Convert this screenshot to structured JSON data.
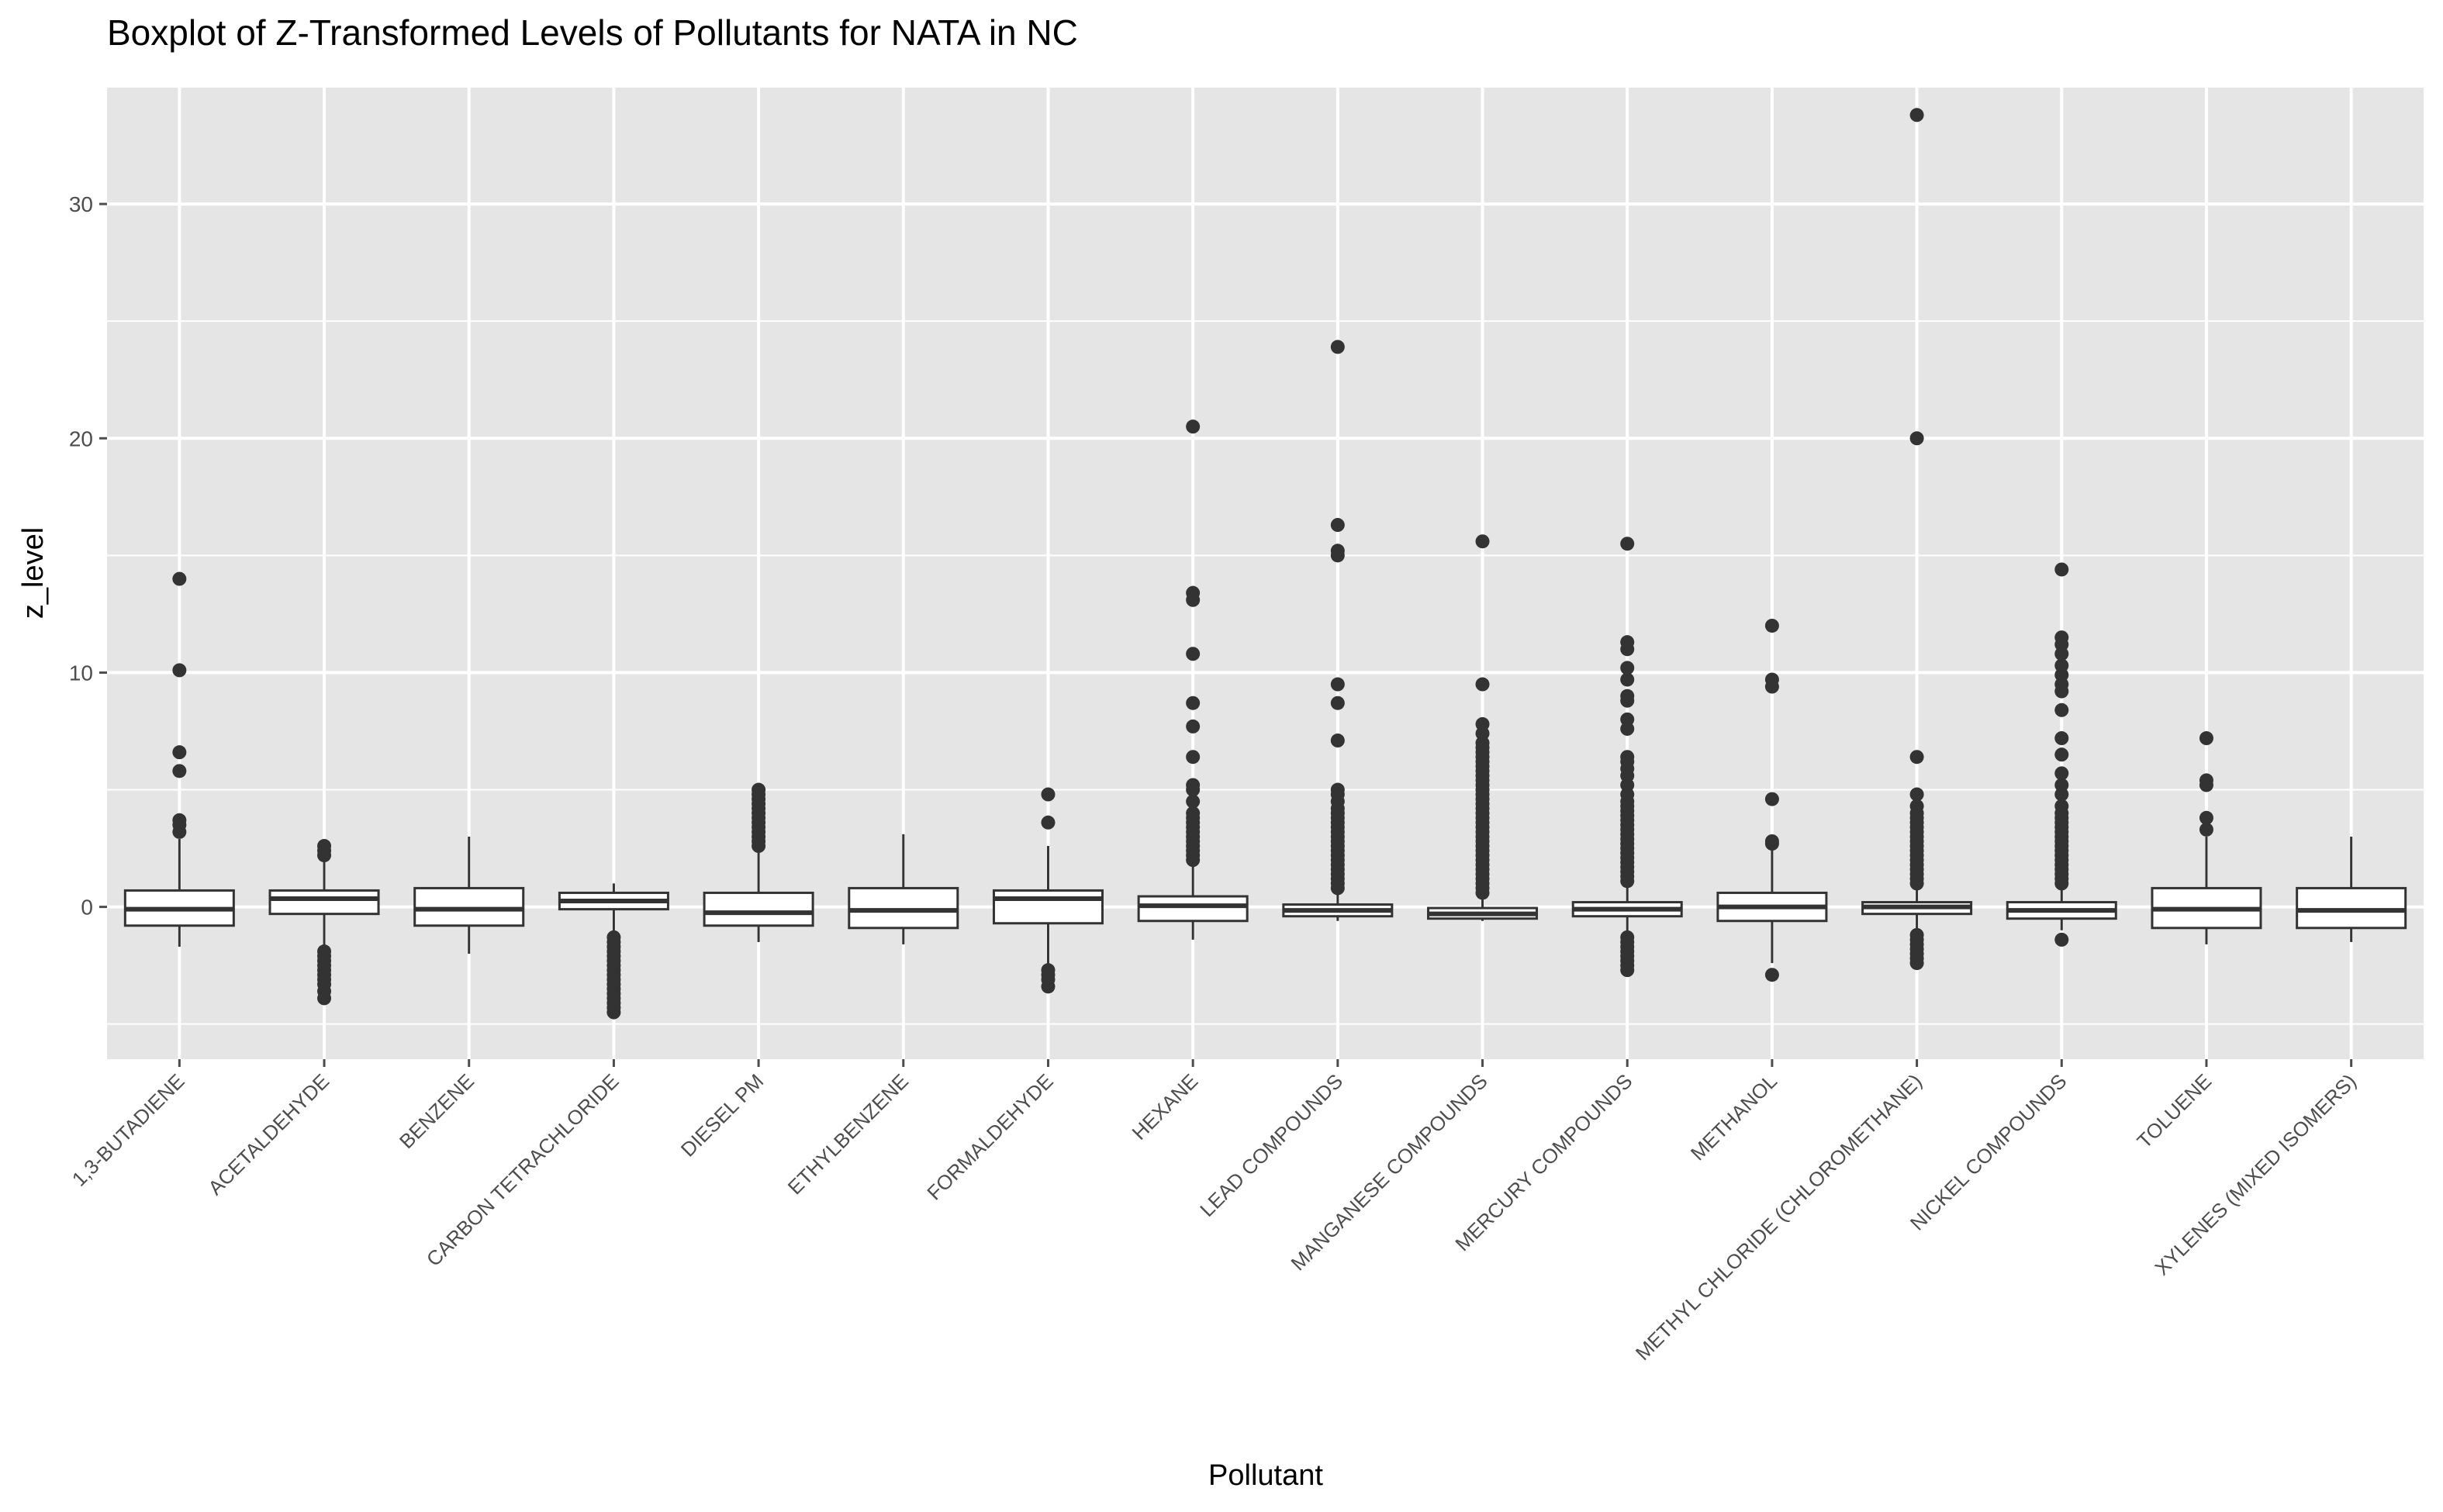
{
  "chart_data": {
    "type": "boxplot",
    "title": "Boxplot of Z-Transformed Levels of Pollutants for NATA in NC",
    "xlabel": "Pollutant",
    "ylabel": "z_level",
    "ylim": [
      -6.5,
      35
    ],
    "yticks": [
      0,
      10,
      20,
      30
    ],
    "grid": true,
    "legend": "none",
    "colors": {
      "panel": "#e5e5e5",
      "grid": "#ffffff",
      "box_fill": "#ffffff",
      "box_line": "#333333",
      "point": "#333333",
      "tick": "#4d4d4d"
    },
    "categories": [
      "1,3-BUTADIENE",
      "ACETALDEHYDE",
      "BENZENE",
      "CARBON TETRACHLORIDE",
      "DIESEL PM",
      "ETHYLBENZENE",
      "FORMALDEHYDE",
      "HEXANE",
      "LEAD COMPOUNDS",
      "MANGANESE COMPOUNDS",
      "MERCURY COMPOUNDS",
      "METHANOL",
      "METHYL CHLORIDE (CHLOROMETHANE)",
      "NICKEL COMPOUNDS",
      "TOLUENE",
      "XYLENES (MIXED ISOMERS)"
    ],
    "boxes": [
      {
        "whisker_low": -1.7,
        "q1": -0.8,
        "median": -0.1,
        "q3": 0.7,
        "whisker_high": 2.9,
        "outliers": [
          3.2,
          3.5,
          3.7,
          5.8,
          6.6,
          10.1,
          14.0
        ]
      },
      {
        "whisker_low": -1.8,
        "q1": -0.3,
        "median": 0.35,
        "q3": 0.7,
        "whisker_high": 2.1,
        "outliers": [
          2.2,
          2.4,
          2.6,
          -1.9,
          -2.1,
          -2.3,
          -2.5,
          -2.7,
          -2.9,
          -3.1,
          -3.3,
          -3.6,
          -3.9
        ]
      },
      {
        "whisker_low": -2.0,
        "q1": -0.8,
        "median": -0.1,
        "q3": 0.8,
        "whisker_high": 3.0,
        "outliers": []
      },
      {
        "whisker_low": -1.1,
        "q1": -0.1,
        "median": 0.25,
        "q3": 0.6,
        "whisker_high": 1.0,
        "outliers": [
          -1.3,
          -1.5,
          -1.7,
          -1.9,
          -2.1,
          -2.3,
          -2.5,
          -2.7,
          -2.9,
          -3.1,
          -3.3,
          -3.5,
          -3.7,
          -3.9,
          -4.1,
          -4.3,
          -4.5
        ]
      },
      {
        "whisker_low": -1.5,
        "q1": -0.8,
        "median": -0.25,
        "q3": 0.6,
        "whisker_high": 2.4,
        "outliers": [
          2.6,
          2.8,
          3.0,
          3.2,
          3.4,
          3.6,
          3.8,
          4.0,
          4.2,
          4.4,
          4.6,
          4.8,
          5.0
        ]
      },
      {
        "whisker_low": -1.6,
        "q1": -0.9,
        "median": -0.15,
        "q3": 0.8,
        "whisker_high": 3.1,
        "outliers": []
      },
      {
        "whisker_low": -2.5,
        "q1": -0.7,
        "median": 0.35,
        "q3": 0.7,
        "whisker_high": 2.6,
        "outliers": [
          3.6,
          4.8,
          -2.7,
          -2.9,
          -3.1,
          -3.4
        ]
      },
      {
        "whisker_low": -1.4,
        "q1": -0.6,
        "median": 0.05,
        "q3": 0.45,
        "whisker_high": 1.8,
        "outliers": [
          2.0,
          2.2,
          2.4,
          2.6,
          2.8,
          3.0,
          3.2,
          3.4,
          3.6,
          3.8,
          4.0,
          4.5,
          5.0,
          5.2,
          6.4,
          7.7,
          8.7,
          10.8,
          13.1,
          13.4,
          20.5
        ]
      },
      {
        "whisker_low": -0.6,
        "q1": -0.4,
        "median": -0.15,
        "q3": 0.1,
        "whisker_high": 0.6,
        "outliers": [
          0.8,
          1.0,
          1.2,
          1.4,
          1.6,
          1.8,
          2.0,
          2.2,
          2.4,
          2.6,
          2.8,
          3.0,
          3.2,
          3.4,
          3.6,
          3.8,
          4.0,
          4.2,
          4.5,
          4.8,
          5.0,
          7.1,
          8.7,
          9.5,
          15.0,
          15.2,
          16.3,
          23.9
        ]
      },
      {
        "whisker_low": -0.6,
        "q1": -0.5,
        "median": -0.3,
        "q3": -0.05,
        "whisker_high": 0.4,
        "outliers": [
          0.6,
          0.8,
          1.0,
          1.2,
          1.4,
          1.6,
          1.8,
          2.0,
          2.2,
          2.4,
          2.6,
          2.8,
          3.0,
          3.2,
          3.4,
          3.6,
          3.8,
          4.0,
          4.2,
          4.4,
          4.6,
          4.8,
          5.0,
          5.2,
          5.4,
          5.6,
          5.8,
          6.0,
          6.2,
          6.4,
          6.6,
          6.8,
          7.0,
          7.4,
          7.8,
          9.5,
          15.6
        ]
      },
      {
        "whisker_low": -1.2,
        "q1": -0.4,
        "median": -0.1,
        "q3": 0.2,
        "whisker_high": 0.9,
        "outliers": [
          1.1,
          1.3,
          1.5,
          1.7,
          1.9,
          2.1,
          2.3,
          2.5,
          2.7,
          2.9,
          3.1,
          3.3,
          3.5,
          3.7,
          3.9,
          4.1,
          4.3,
          4.5,
          4.8,
          5.2,
          5.6,
          5.9,
          6.2,
          6.4,
          7.6,
          8.0,
          8.8,
          9.0,
          9.7,
          10.2,
          11.0,
          11.3,
          15.5,
          -1.3,
          -1.5,
          -1.7,
          -1.9,
          -2.1,
          -2.3,
          -2.5,
          -2.7
        ]
      },
      {
        "whisker_low": -2.4,
        "q1": -0.6,
        "median": 0.0,
        "q3": 0.6,
        "whisker_high": 2.5,
        "outliers": [
          2.7,
          2.8,
          4.6,
          9.4,
          9.7,
          12.0,
          -2.9
        ]
      },
      {
        "whisker_low": -1.0,
        "q1": -0.3,
        "median": 0.0,
        "q3": 0.2,
        "whisker_high": 0.8,
        "outliers": [
          1.0,
          1.2,
          1.4,
          1.6,
          1.8,
          2.0,
          2.2,
          2.4,
          2.6,
          2.8,
          3.0,
          3.2,
          3.4,
          3.6,
          3.8,
          4.0,
          4.3,
          4.8,
          6.4,
          20.0,
          33.8,
          -1.2,
          -1.4,
          -1.6,
          -1.8,
          -2.0,
          -2.2,
          -2.4
        ]
      },
      {
        "whisker_low": -1.0,
        "q1": -0.5,
        "median": -0.15,
        "q3": 0.2,
        "whisker_high": 0.8,
        "outliers": [
          1.0,
          1.2,
          1.4,
          1.6,
          1.8,
          2.0,
          2.2,
          2.4,
          2.6,
          2.8,
          3.0,
          3.2,
          3.4,
          3.6,
          3.8,
          4.0,
          4.3,
          4.8,
          5.2,
          5.7,
          6.5,
          7.2,
          8.4,
          9.2,
          9.5,
          9.9,
          10.3,
          10.8,
          11.2,
          11.5,
          14.4,
          -1.4
        ]
      },
      {
        "whisker_low": -1.6,
        "q1": -0.9,
        "median": -0.1,
        "q3": 0.8,
        "whisker_high": 3.0,
        "outliers": [
          3.3,
          3.8,
          5.2,
          5.4,
          7.2
        ]
      },
      {
        "whisker_low": -1.5,
        "q1": -0.9,
        "median": -0.15,
        "q3": 0.8,
        "whisker_high": 3.0,
        "outliers": []
      }
    ]
  }
}
